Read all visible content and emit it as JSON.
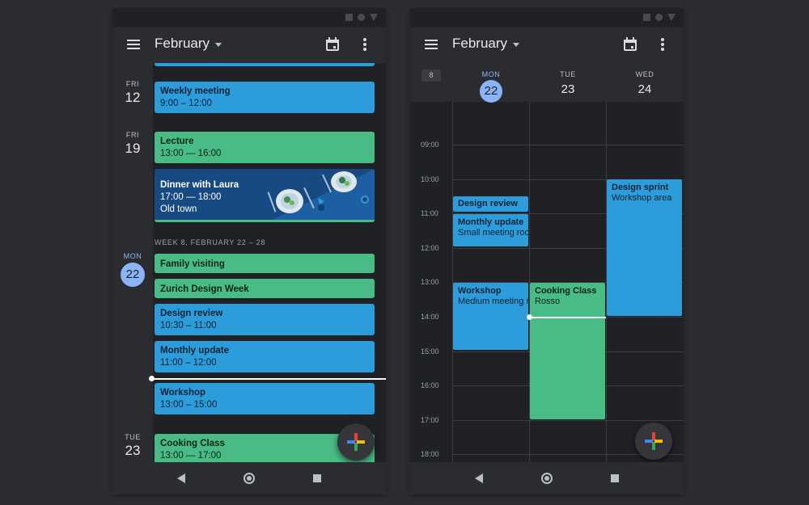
{
  "left_screen": {
    "month": "February",
    "days": [
      {
        "weekday": "FRI",
        "number": "12"
      },
      {
        "weekday": "FRI",
        "number": "19"
      },
      {
        "weekday": "MON",
        "number": "22"
      },
      {
        "weekday": "TUE",
        "number": "23"
      }
    ],
    "week_header": "WEEK 8, FEBRUARY 22 – 28",
    "events": [
      {
        "title": "Weekly meeting",
        "time": "9:00 – 12:00",
        "color": "#2d9cdb"
      },
      {
        "title": "Lecture",
        "time": "13:00 — 16:00",
        "color": "#49bc85"
      },
      {
        "title": "Dinner with Laura",
        "time": "17:00 — 18:00",
        "location": "Old town",
        "color": "#174a82"
      },
      {
        "title": "Family visiting",
        "color": "#49bc85"
      },
      {
        "title": "Zurich Design Week",
        "color": "#49bc85"
      },
      {
        "title": "Design review",
        "time": "10:30 – 11:00",
        "color": "#2d9cdb"
      },
      {
        "title": "Monthly update",
        "time": "11:00 – 12:00",
        "color": "#2d9cdb"
      },
      {
        "title": "Workshop",
        "time": "13:00 – 15:00",
        "color": "#2d9cdb"
      },
      {
        "title": "Cooking Class",
        "time": "13:00 — 17:00",
        "color": "#49bc85"
      }
    ]
  },
  "right_screen": {
    "month": "February",
    "week_number": "8",
    "columns": [
      {
        "weekday": "MON",
        "number": "22",
        "today": true
      },
      {
        "weekday": "TUE",
        "number": "23",
        "today": false
      },
      {
        "weekday": "WED",
        "number": "24",
        "today": false
      }
    ],
    "hours": [
      "09:00",
      "10:00",
      "11:00",
      "12:00",
      "13:00",
      "14:00",
      "15:00",
      "16:00",
      "17:00",
      "18:00"
    ],
    "events": [
      {
        "title": "Design review",
        "color": "#2d9cdb"
      },
      {
        "title": "Monthly update",
        "subtitle": "Small meeting room",
        "color": "#2d9cdb"
      },
      {
        "title": "Workshop",
        "subtitle": "Medium meeting room",
        "color": "#2d9cdb"
      },
      {
        "title": "Cooking Class",
        "subtitle": "Rosso",
        "color": "#49bc85"
      },
      {
        "title": "Design sprint",
        "subtitle": "Workshop area",
        "color": "#2d9cdb"
      }
    ]
  },
  "icons": {
    "menu": "hamburger-menu-icon",
    "dropdown": "caret-down-icon",
    "calendar": "calendar-today-icon",
    "more": "more-vertical-icon",
    "add": "google-plus-icon",
    "back": "nav-back-icon",
    "home": "nav-home-icon",
    "recents": "nav-recents-icon"
  },
  "colors": {
    "background": "#2c2d30",
    "surface": "#202124",
    "appbar": "#2b2c2f",
    "accent_today": "#8ab4f8",
    "event_blue": "#2d9cdb",
    "event_green": "#49bc85"
  }
}
